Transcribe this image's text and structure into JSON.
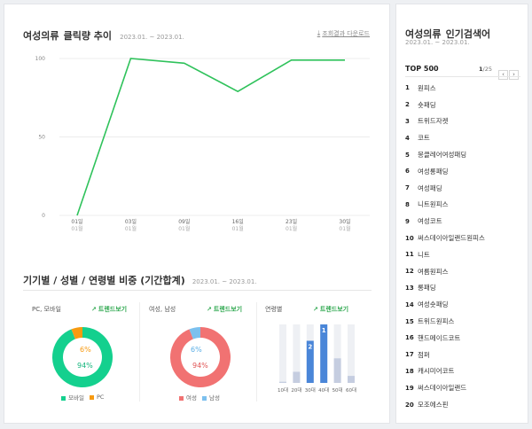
{
  "trend": {
    "keyword": "여성의류",
    "title_rest": "클릭량 추이",
    "period": "2023.01. ~ 2023.01.",
    "download_label": "조회결과 다운로드"
  },
  "chart_data": [
    {
      "type": "line",
      "title": "여성의류 클릭량 추이",
      "x": [
        "01일",
        "03일",
        "09일",
        "16일",
        "23일",
        "30일"
      ],
      "x_sublabel": "01월",
      "series": [
        {
          "values": [
            0,
            100,
            97,
            79,
            99,
            99
          ]
        }
      ],
      "yticks": [
        0,
        50,
        100
      ],
      "ylim": [
        0,
        100
      ],
      "xlabel": "",
      "ylabel": "",
      "grid": true,
      "color": "#2fc25b"
    },
    {
      "type": "pie",
      "title": "PC, 모바일",
      "series": [
        {
          "name": "모바일",
          "value": 94,
          "color": "#14d08e"
        },
        {
          "name": "PC",
          "value": 6,
          "color": "#f79a10"
        }
      ]
    },
    {
      "type": "pie",
      "title": "여성, 남성",
      "series": [
        {
          "name": "여성",
          "value": 94,
          "color": "#f17272"
        },
        {
          "name": "남성",
          "value": 6,
          "color": "#7cc0ee"
        }
      ]
    },
    {
      "type": "bar",
      "title": "연령별",
      "categories": [
        "10대",
        "20대",
        "30대",
        "40대",
        "50대",
        "60대"
      ],
      "values": [
        2,
        19,
        72,
        100,
        42,
        12
      ],
      "rank_labels": [
        "",
        "",
        "2",
        "1",
        "",
        ""
      ],
      "ylim": [
        0,
        100
      ]
    }
  ],
  "ratio_section": {
    "title": "기기별 / 성별 / 연령별 비중 (기간합계)",
    "period": "2023.01. ~ 2023.01.",
    "trend_button_label": "트렌드보기",
    "device_label": "PC, 모바일",
    "device_pc_pct": "6%",
    "device_mobile_pct": "94%",
    "legend_mobile": "모바일",
    "legend_pc": "PC",
    "gender_label": "여성, 남성",
    "gender_male_pct": "6%",
    "gender_female_pct": "94%",
    "legend_female": "여성",
    "legend_male": "남성",
    "age_label": "연령별"
  },
  "sidebar": {
    "keyword": "여성의류",
    "title_rest": "인기검색어",
    "period": "2023.01. ~ 2023.01.",
    "top_label": "TOP 500",
    "page_current": "1",
    "page_total": "/25",
    "prev_icon": "chevron-left",
    "next_icon": "chevron-right",
    "items": [
      {
        "rank": "1",
        "keyword": "원피스"
      },
      {
        "rank": "2",
        "keyword": "숏패딩"
      },
      {
        "rank": "3",
        "keyword": "트위드자켓"
      },
      {
        "rank": "4",
        "keyword": "코트"
      },
      {
        "rank": "5",
        "keyword": "몽클레어여성패딩"
      },
      {
        "rank": "6",
        "keyword": "여성롱패딩"
      },
      {
        "rank": "7",
        "keyword": "여성패딩"
      },
      {
        "rank": "8",
        "keyword": "니트원피스"
      },
      {
        "rank": "9",
        "keyword": "여성코트"
      },
      {
        "rank": "10",
        "keyword": "써스데이아일랜드원피스"
      },
      {
        "rank": "11",
        "keyword": "니트"
      },
      {
        "rank": "12",
        "keyword": "여름원피스"
      },
      {
        "rank": "13",
        "keyword": "롱패딩"
      },
      {
        "rank": "14",
        "keyword": "여성숏패딩"
      },
      {
        "rank": "15",
        "keyword": "트위드원피스"
      },
      {
        "rank": "16",
        "keyword": "핸드메이드코트"
      },
      {
        "rank": "17",
        "keyword": "점퍼"
      },
      {
        "rank": "18",
        "keyword": "캐시미어코트"
      },
      {
        "rank": "19",
        "keyword": "써스데이아일랜드"
      },
      {
        "rank": "20",
        "keyword": "모조에스핀"
      }
    ]
  }
}
